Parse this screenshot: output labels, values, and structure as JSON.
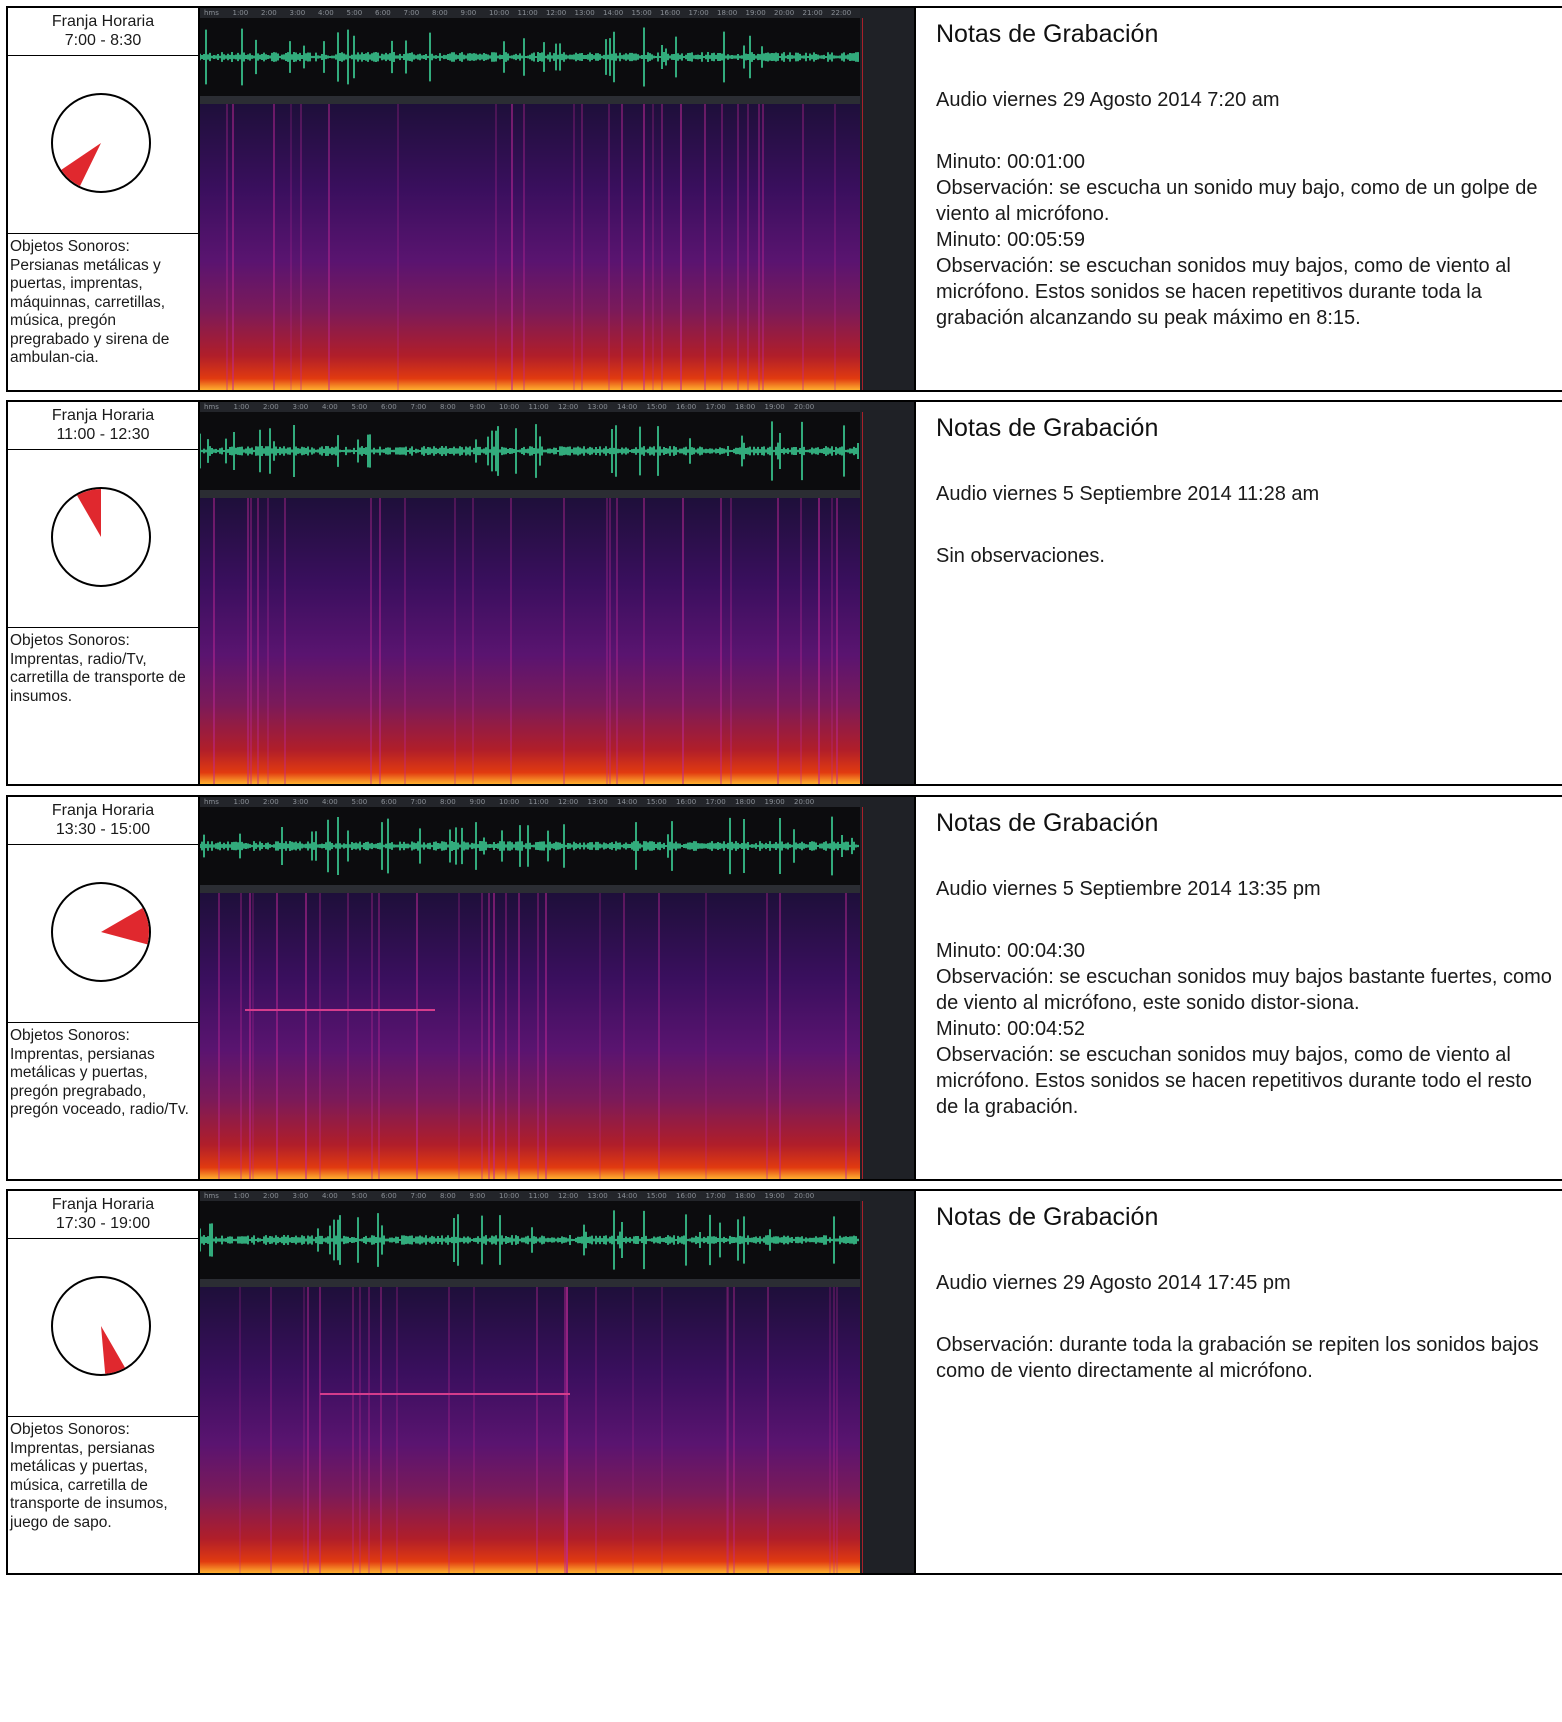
{
  "rows": [
    {
      "slot_label": "Franja Horaria",
      "slot_time": "7:00 - 8:30",
      "objects": "Objetos Sonoros: Persianas metálicas y puertas, imprentas, máquinnas, carretillas, música, pregón pregrabado y sirena de ambulan-cia.",
      "notes_title": "Notas de Grabación",
      "audio_date": "Audio viernes 29 Agosto 2014 7:20 am",
      "lines": [
        "Minuto: 00:01:00",
        "Observación: se escucha un sonido muy bajo, como de un golpe de viento al micrófono.",
        "Minuto: 00:05:59",
        "Observación: se escuchan sonidos muy bajos, como de viento al micrófono. Estos sonidos se hacen repetitivos durante toda la grabación alcanzando su peak máximo en 8:15."
      ]
    },
    {
      "slot_label": "Franja Horaria",
      "slot_time": "11:00 - 12:30",
      "objects": "Objetos Sonoros: Imprentas, radio/Tv, carretilla de transporte de insumos.",
      "notes_title": "Notas de Grabación",
      "audio_date": "Audio viernes 5 Septiembre 2014 11:28 am",
      "lines": [
        "Sin observaciones."
      ]
    },
    {
      "slot_label": "Franja Horaria",
      "slot_time": "13:30 - 15:00",
      "objects": "Objetos Sonoros: Imprentas, persianas metálicas y puertas, pregón pregrabado, pregón voceado, radio/Tv.",
      "notes_title": "Notas de Grabación",
      "audio_date": "Audio viernes 5 Septiembre 2014 13:35 pm",
      "lines": [
        "Minuto: 00:04:30",
        "Observación: se escuchan sonidos muy bajos bastante fuertes, como de viento al micrófono, este sonido distor-siona.",
        "Minuto: 00:04:52",
        "Observación: se escuchan sonidos muy bajos, como de viento al micrófono. Estos sonidos se hacen repetitivos durante todo el resto de la grabación."
      ]
    },
    {
      "slot_label": "Franja Horaria",
      "slot_time": "17:30 - 19:00",
      "objects": "Objetos Sonoros: Imprentas, persianas metálicas y puertas, música, carretilla de transporte de insumos, juego de sapo.",
      "notes_title": "Notas de Grabación",
      "audio_date": "Audio viernes 29 Agosto 2014 17:45 pm",
      "lines": [
        "Observación: durante toda la grabación se repiten los sonidos bajos como de viento directamente al micrófono."
      ]
    }
  ],
  "ruler_labels": [
    "hms",
    "1:00",
    "2:00",
    "3:00",
    "4:00",
    "5:00",
    "6:00",
    "7:00",
    "8:00",
    "9:00",
    "10:00",
    "11:00",
    "12:00",
    "13:00",
    "14:00",
    "15:00",
    "16:00",
    "17:00",
    "18:00",
    "19:00",
    "20:00",
    "21:00",
    "22:00",
    "23:00"
  ],
  "colors": {
    "waveform": "#3ee0a0",
    "clock_wedge": "#e0282e"
  }
}
